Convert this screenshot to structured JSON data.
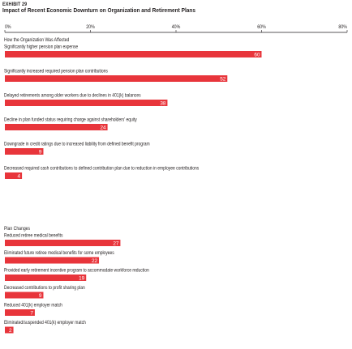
{
  "exhibit_label": "EXHIBIT 29",
  "chart_data": {
    "type": "bar",
    "orientation": "horizontal",
    "title": "Impact of Recent Economic Downturn on Organization and Retirement Plans",
    "xlim": [
      0,
      80
    ],
    "tick_labels": [
      "0%",
      "20%",
      "40%",
      "60%",
      "80%"
    ],
    "bar_color": "#e8353b",
    "value_label_color": "#ffffff",
    "groups": [
      {
        "heading": "How the Organization Was Affected",
        "items": [
          {
            "label": "Significantly higher pension plan expense",
            "value": 60
          },
          {
            "label": "Significantly increased required pension plan contributions",
            "value": 52
          },
          {
            "label": "Delayed retirements among older workers due to declines in 401(k) balances",
            "value": 38
          },
          {
            "label": "Decline in plan funded status requiring charge against shareholders' equity",
            "value": 24
          },
          {
            "label": "Downgrade in credit ratings due to increased liability from defined benefit program",
            "value": 9
          },
          {
            "label": "Decreased required cash contributions to defined contribution plan due to reduction in employee contributions",
            "value": 4
          }
        ]
      },
      {
        "heading": "Plan Changes",
        "items": [
          {
            "label": "Reduced retiree medical benefits",
            "value": 27
          },
          {
            "label": "Eliminated future retiree medical benefits for some employees",
            "value": 22
          },
          {
            "label": "Provided early retirement incentive program to accommodate workforce reduction",
            "value": 19
          },
          {
            "label": "Decreased contributions to profit sharing plan",
            "value": 9
          },
          {
            "label": "Reduced 401(k) employer match",
            "value": 7
          },
          {
            "label": "Eliminated/suspended 401(k) employer match",
            "value": 2
          }
        ]
      }
    ]
  }
}
